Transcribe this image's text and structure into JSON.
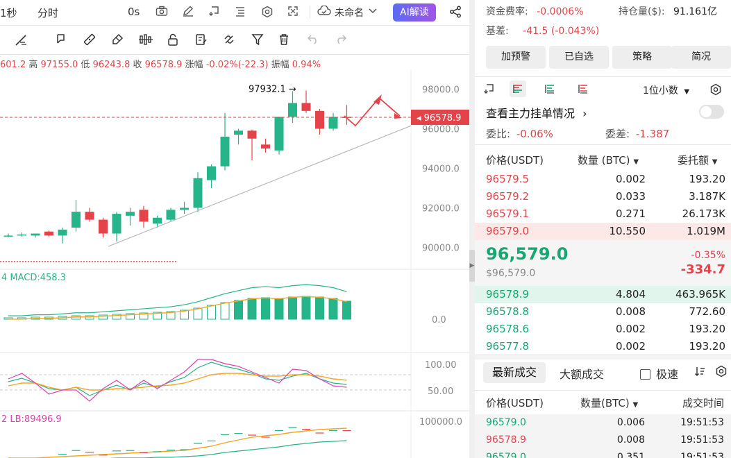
{
  "toolbar": {
    "interval_1s": "1秒",
    "timeshare": "分时",
    "countdown": "0s",
    "layout_name": "未命名",
    "ai_label": "AI解读"
  },
  "ohlc": {
    "open_partial": "601.2",
    "high_label": "高",
    "high": "97155.0",
    "low_label": "低",
    "low": "96243.8",
    "close_label": "收",
    "close": "96578.9",
    "change_label": "涨幅",
    "change": "-0.02%(-22.3)",
    "amp_label": "振幅",
    "amp": "0.94%"
  },
  "chart_data": {
    "type": "candlestick",
    "price_axis": [
      "98000.0",
      "96000.0",
      "94000.0",
      "92000.0",
      "90000.0"
    ],
    "ylim": [
      89000,
      99000
    ],
    "last_price_tag": "96578.9",
    "high_annotation": "97932.1 →",
    "candles": [
      {
        "o": 90600,
        "h": 90700,
        "l": 90500,
        "c": 90600
      },
      {
        "o": 90650,
        "h": 90750,
        "l": 90550,
        "c": 90650
      },
      {
        "o": 90600,
        "h": 90700,
        "l": 90500,
        "c": 90700
      },
      {
        "o": 90800,
        "h": 90850,
        "l": 90550,
        "c": 90600
      },
      {
        "o": 90600,
        "h": 91000,
        "l": 90200,
        "c": 90900
      },
      {
        "o": 91000,
        "h": 92400,
        "l": 90800,
        "c": 91800
      },
      {
        "o": 91800,
        "h": 92000,
        "l": 91300,
        "c": 91400
      },
      {
        "o": 91400,
        "h": 91500,
        "l": 90500,
        "c": 90700
      },
      {
        "o": 90700,
        "h": 91800,
        "l": 90300,
        "c": 91700
      },
      {
        "o": 91600,
        "h": 92000,
        "l": 91100,
        "c": 91800
      },
      {
        "o": 91900,
        "h": 92100,
        "l": 91000,
        "c": 91300
      },
      {
        "o": 91200,
        "h": 91600,
        "l": 91000,
        "c": 91500
      },
      {
        "o": 91400,
        "h": 92000,
        "l": 91300,
        "c": 91900
      },
      {
        "o": 91900,
        "h": 92300,
        "l": 91700,
        "c": 92000
      },
      {
        "o": 92000,
        "h": 93800,
        "l": 91800,
        "c": 93500
      },
      {
        "o": 93400,
        "h": 94200,
        "l": 93000,
        "c": 94100
      },
      {
        "o": 94100,
        "h": 96800,
        "l": 93900,
        "c": 95600
      },
      {
        "o": 95700,
        "h": 96000,
        "l": 95200,
        "c": 95900
      },
      {
        "o": 95900,
        "h": 95950,
        "l": 94400,
        "c": 95500
      },
      {
        "o": 95200,
        "h": 95500,
        "l": 94800,
        "c": 95000
      },
      {
        "o": 94900,
        "h": 96600,
        "l": 94700,
        "c": 96600
      },
      {
        "o": 96600,
        "h": 97900,
        "l": 96300,
        "c": 97300
      },
      {
        "o": 97300,
        "h": 97930,
        "l": 96800,
        "c": 96900
      },
      {
        "o": 96900,
        "h": 97000,
        "l": 95700,
        "c": 96000
      },
      {
        "o": 96000,
        "h": 96800,
        "l": 95900,
        "c": 96600
      },
      {
        "o": 96600,
        "h": 97200,
        "l": 96200,
        "c": 96578
      }
    ],
    "macd_label": "MACD:458.3",
    "macd_axis": "0.0",
    "macd_hist": [
      2,
      2,
      3,
      3,
      4,
      5,
      5,
      6,
      7,
      8,
      9,
      10,
      11,
      13,
      16,
      20,
      24,
      27,
      30,
      31,
      30,
      32,
      33,
      32,
      30,
      26
    ],
    "kdj_axis": [
      "100.00",
      "50.00"
    ],
    "boll_label": "LB:89496.9",
    "boll_axis": "100000.0"
  },
  "right": {
    "funding_label": "资金费率:",
    "funding_value": "-0.0006%",
    "oi_label": "持仓量($):",
    "oi_value": "91.161亿",
    "basis_label": "基差:",
    "basis_value": "-41.5 (-0.043%)",
    "buttons": [
      "加预警",
      "已自选",
      "策略",
      "简况"
    ],
    "precision": "1位小数",
    "depth_link": "查看主力挂单情况",
    "ratio_label": "委比:",
    "ratio_value": "-0.06%",
    "diff_label": "委差:",
    "diff_value": "-1.387",
    "col_price": "价格(USDT)",
    "col_qty": "数量 (BTC)",
    "col_total": "委托额",
    "asks": [
      {
        "price": "96579.5",
        "qty": "0.002",
        "total": "193.20"
      },
      {
        "price": "96579.2",
        "qty": "0.033",
        "total": "3.187K"
      },
      {
        "price": "96579.1",
        "qty": "0.271",
        "total": "26.173K"
      },
      {
        "price": "96579.0",
        "qty": "10.550",
        "total": "1.019M"
      }
    ],
    "mid_price": "96,579.0",
    "mid_usd": "$96,579.0",
    "mid_pct": "-0.35%",
    "mid_chg": "-334.7",
    "bids": [
      {
        "price": "96578.9",
        "qty": "4.804",
        "total": "463.965K"
      },
      {
        "price": "96578.8",
        "qty": "0.008",
        "total": "772.60"
      },
      {
        "price": "96578.6",
        "qty": "0.002",
        "total": "193.20"
      },
      {
        "price": "96577.8",
        "qty": "0.002",
        "total": "193.20"
      }
    ],
    "tab_latest": "最新成交",
    "tab_large": "大额成交",
    "fast_label": "极速",
    "tr_col_price": "价格(USDT)",
    "tr_col_qty": "数量(BTC)",
    "tr_col_time": "成交时间",
    "trades": [
      {
        "price": "96579.0",
        "qty": "0.006",
        "time": "19:51:53",
        "side": "buy"
      },
      {
        "price": "96578.9",
        "qty": "0.008",
        "time": "19:51:53",
        "side": "sell"
      },
      {
        "price": "96579.0",
        "qty": "0.351",
        "time": "19:51:53",
        "side": "buy"
      }
    ]
  }
}
